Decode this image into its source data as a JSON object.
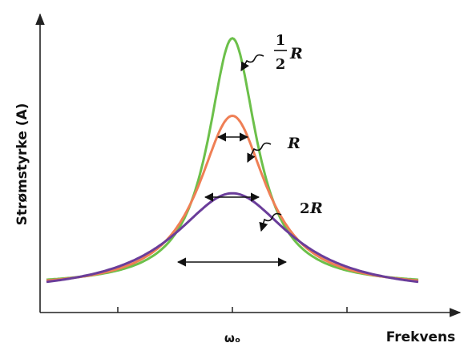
{
  "chart_data": {
    "type": "line",
    "xlabel": "Frekvens",
    "ylabel": "Strømstyrke (A)",
    "xticks": [
      "",
      "ωₒ",
      ""
    ],
    "grid": false,
    "series": [
      {
        "name": "½R",
        "label_num": "1",
        "label_den": "2",
        "label_sym": "R",
        "color": "#6cc04a",
        "peak": 0.92,
        "base": 0.09,
        "halfwidth": 0.1
      },
      {
        "name": "R",
        "label_sym": "R",
        "color": "#ef7f55",
        "peak": 0.66,
        "base": 0.08,
        "halfwidth": 0.14
      },
      {
        "name": "2R",
        "label_coef": "2",
        "label_sym": "R",
        "color": "#6a3d9a",
        "peak": 0.4,
        "base": 0.06,
        "halfwidth": 0.24
      }
    ]
  },
  "colors": {
    "axis": "#222222",
    "arrow": "#111111"
  }
}
